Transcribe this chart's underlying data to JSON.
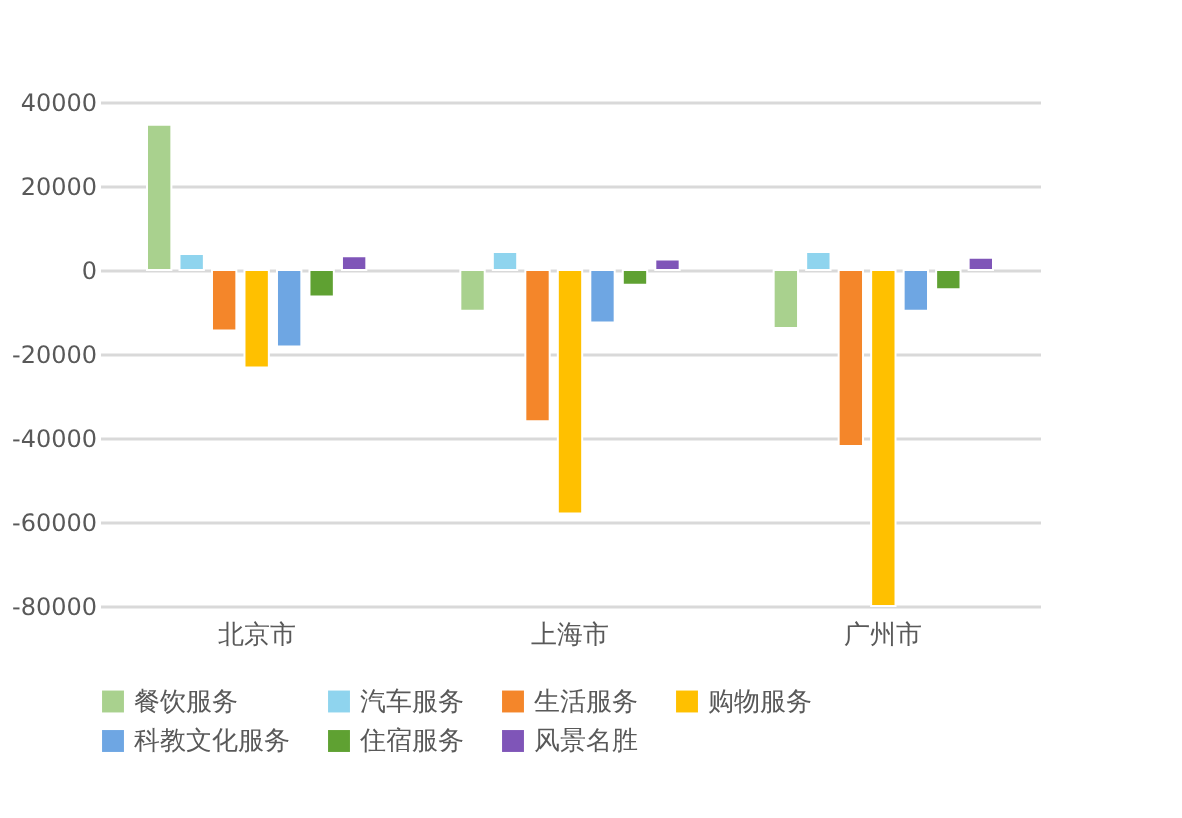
{
  "chart_data": {
    "type": "bar",
    "categories": [
      "北京市",
      "上海市",
      "广州市"
    ],
    "series": [
      {
        "name": "餐饮服务",
        "color": "#a9d18e",
        "values": [
          34600,
          -9700,
          -13800
        ]
      },
      {
        "name": "汽车服务",
        "color": "#8fd4ee",
        "values": [
          3800,
          4300,
          4300
        ]
      },
      {
        "name": "生活服务",
        "color": "#f4862a",
        "values": [
          -14400,
          -36000,
          -41900
        ]
      },
      {
        "name": "购物服务",
        "color": "#ffc000",
        "values": [
          -23200,
          -58000,
          -80000
        ]
      },
      {
        "name": "科教文化服务",
        "color": "#6ea6e3",
        "values": [
          -18200,
          -12500,
          -9700
        ]
      },
      {
        "name": "住宿服务",
        "color": "#5fa132",
        "values": [
          -6300,
          -3500,
          -4600
        ]
      },
      {
        "name": "风景名胜",
        "color": "#7f55b8",
        "values": [
          3300,
          2500,
          2900
        ]
      }
    ],
    "ylim": [
      -80000,
      40000
    ],
    "yticks": [
      -80000,
      -60000,
      -40000,
      -20000,
      0,
      20000,
      40000
    ],
    "grid": "y",
    "legend": "bottom"
  }
}
